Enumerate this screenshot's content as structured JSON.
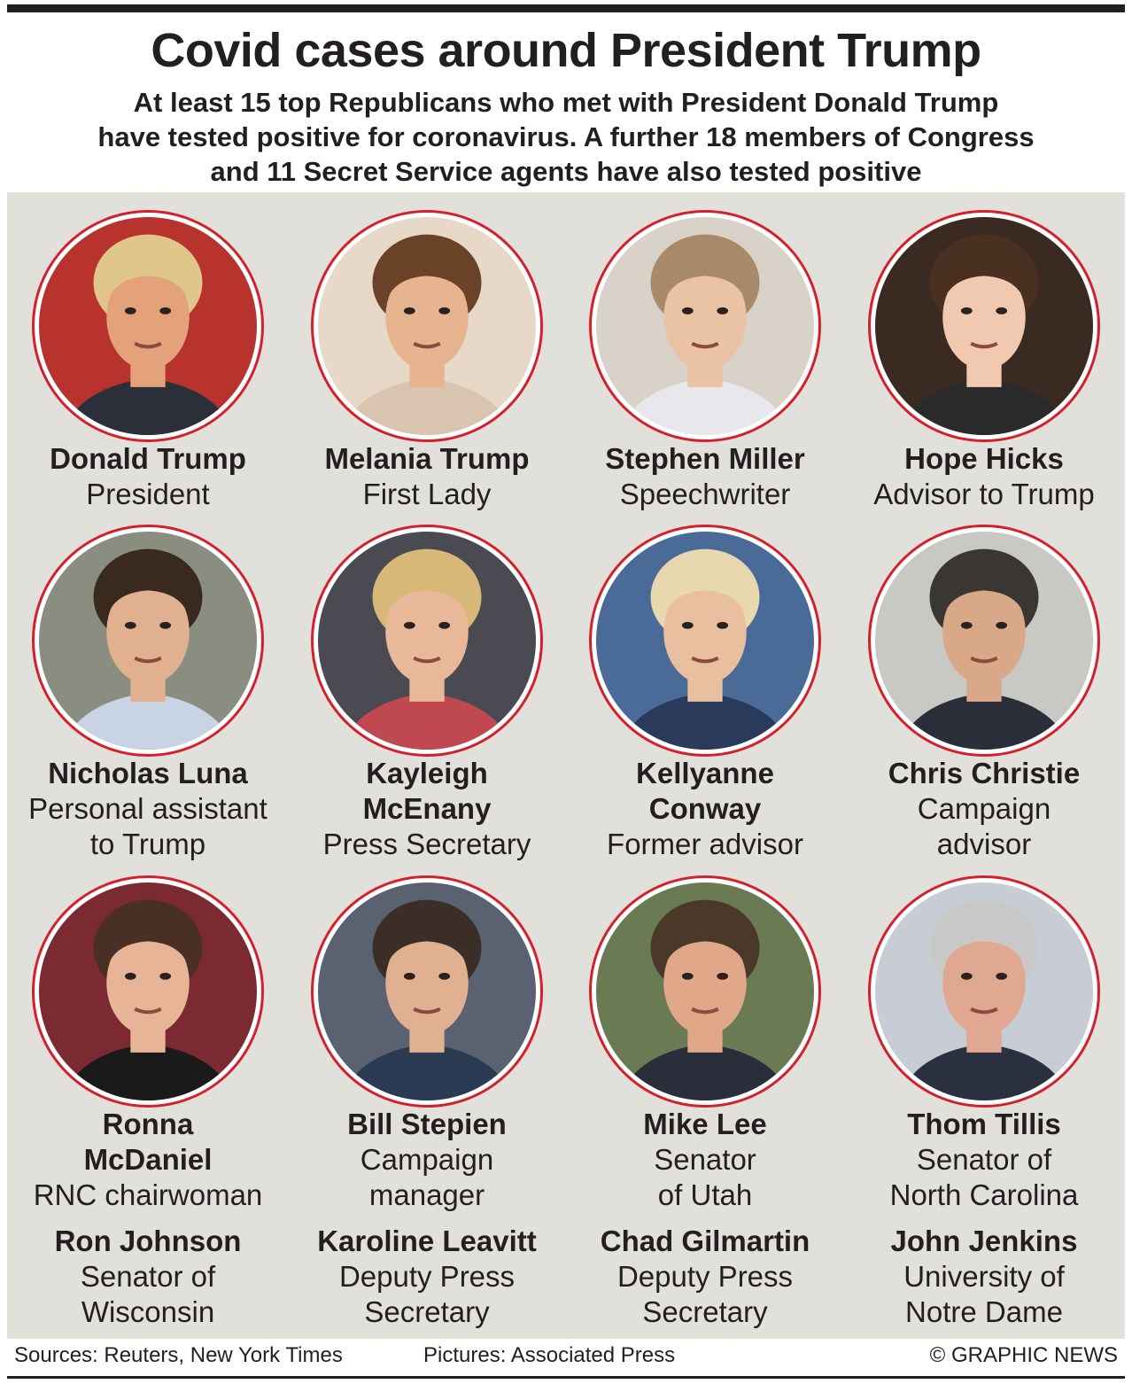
{
  "header": {
    "title": "Covid cases around President Trump",
    "subtitle_lines": [
      "At least 15 top Republicans who met with President Donald Trump",
      "have tested positive for coronavirus. A further 18 members of Congress",
      "and 11 Secret Service agents have also tested positive"
    ]
  },
  "people": [
    {
      "name": "Donald Trump",
      "role": "President",
      "icon": "portrait-photo",
      "colors": {
        "bg": "#b8322e",
        "skin": "#e3a27a",
        "hair": "#e0c68a",
        "cloth": "#2b2f3a"
      }
    },
    {
      "name": "Melania Trump",
      "role": "First Lady",
      "icon": "portrait-photo",
      "colors": {
        "bg": "#e8d8c8",
        "skin": "#e6b48f",
        "hair": "#6a4228",
        "cloth": "#d9c4b0"
      }
    },
    {
      "name": "Stephen Miller",
      "role": "Speechwriter",
      "icon": "portrait-photo",
      "colors": {
        "bg": "#d8d2c8",
        "skin": "#eac2a4",
        "hair": "#a88a6a",
        "cloth": "#e8e8ec"
      }
    },
    {
      "name": "Hope Hicks",
      "role": "Advisor to Trump",
      "icon": "portrait-photo",
      "colors": {
        "bg": "#3a2a22",
        "skin": "#f0c9b0",
        "hair": "#4a3020",
        "cloth": "#2a2a2a"
      }
    },
    {
      "name": "Nicholas Luna",
      "role_lines": [
        "Personal assistant",
        "to Trump"
      ],
      "icon": "portrait-photo",
      "colors": {
        "bg": "#8a8e80",
        "skin": "#e0b090",
        "hair": "#3a2a1e",
        "cloth": "#c8d4e4"
      }
    },
    {
      "name_lines": [
        "Kayleigh",
        "McEnany"
      ],
      "role": "Press Secretary",
      "icon": "portrait-photo",
      "colors": {
        "bg": "#4a4a52",
        "skin": "#e8b898",
        "hair": "#d8b878",
        "cloth": "#c04850"
      }
    },
    {
      "name_lines": [
        "Kellyanne",
        "Conway"
      ],
      "role": "Former advisor",
      "icon": "portrait-photo",
      "colors": {
        "bg": "#4a6a98",
        "skin": "#e8c0a0",
        "hair": "#e8d8b0",
        "cloth": "#2a3a5a"
      }
    },
    {
      "name": "Chris Christie",
      "role_lines": [
        "Campaign",
        "advisor"
      ],
      "icon": "portrait-photo",
      "colors": {
        "bg": "#c8c8c4",
        "skin": "#d8a888",
        "hair": "#3a3632",
        "cloth": "#2a2e38"
      }
    },
    {
      "name_lines": [
        "Ronna",
        "McDaniel"
      ],
      "role": "RNC chairwoman",
      "icon": "portrait-photo",
      "colors": {
        "bg": "#7a2a30",
        "skin": "#e8b498",
        "hair": "#4a3024",
        "cloth": "#1a1a1a"
      }
    },
    {
      "name": "Bill Stepien",
      "role_lines": [
        "Campaign",
        "manager"
      ],
      "icon": "portrait-photo",
      "colors": {
        "bg": "#5a6272",
        "skin": "#e0b090",
        "hair": "#3a2e26",
        "cloth": "#2a3a52"
      }
    },
    {
      "name": "Mike Lee",
      "role_lines": [
        "Senator",
        "of Utah"
      ],
      "icon": "portrait-photo",
      "colors": {
        "bg": "#6a7a52",
        "skin": "#e0a888",
        "hair": "#4a3828",
        "cloth": "#2a2e3a"
      }
    },
    {
      "name": "Thom Tillis",
      "role_lines": [
        "Senator of",
        "North Carolina"
      ],
      "icon": "portrait-photo",
      "colors": {
        "bg": "#c8ccd4",
        "skin": "#e0a890",
        "hair": "#c8c8c8",
        "cloth": "#2a3040"
      }
    }
  ],
  "additional": [
    {
      "name": "Ron Johnson",
      "role_lines": [
        "Senator of",
        "Wisconsin"
      ]
    },
    {
      "name": "Karoline Leavitt",
      "role_lines": [
        "Deputy Press",
        "Secretary"
      ]
    },
    {
      "name": "Chad Gilmartin",
      "role_lines": [
        "Deputy Press",
        "Secretary"
      ]
    },
    {
      "name": "John Jenkins",
      "role_lines": [
        "University of",
        "Notre Dame"
      ]
    }
  ],
  "footer": {
    "sources": "Sources: Reuters, New York Times",
    "pictures": "Pictures: Associated Press",
    "credit": "© GRAPHIC NEWS"
  },
  "colors": {
    "accent_ring": "#d4202b",
    "panel": "#e2e0db",
    "text": "#231f20"
  }
}
